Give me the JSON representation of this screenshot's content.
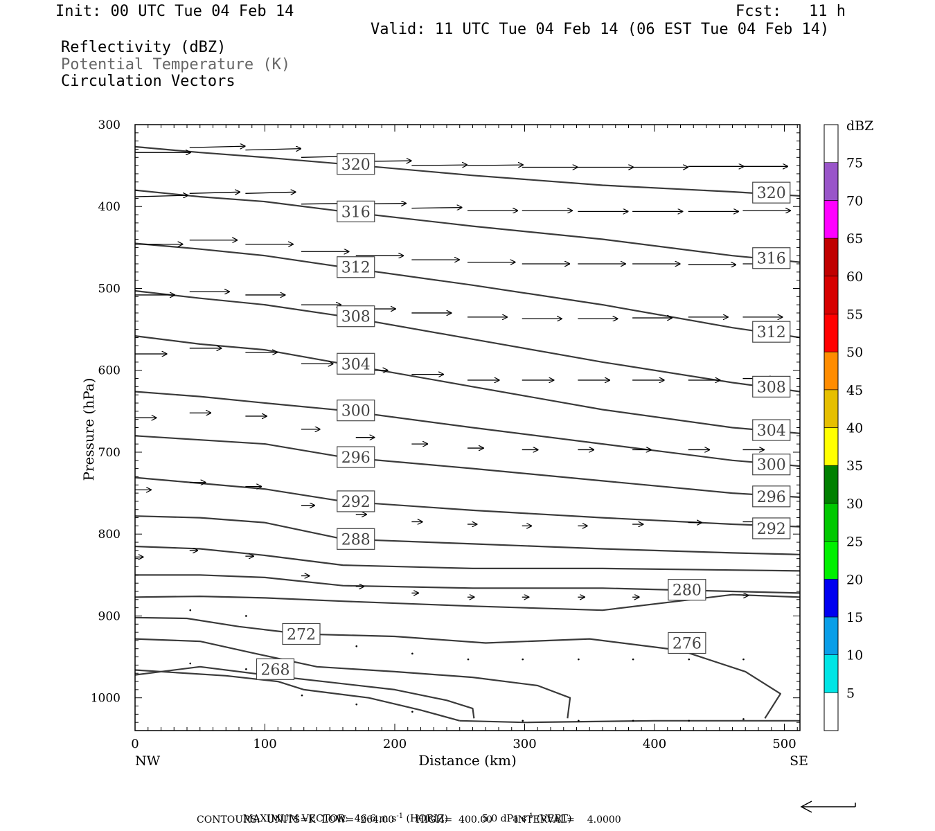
{
  "header": {
    "init": "Init: 00 UTC Tue 04 Feb 14",
    "fcst": "Fcst:   11 h",
    "valid": "Valid: 11 UTC Tue 04 Feb 14 (06 EST Tue 04 Feb 14)",
    "fields": [
      "Reflectivity (dBZ)",
      "Potential Temperature (K)",
      "Circulation Vectors"
    ]
  },
  "footer": {
    "line1_label": "MAXIMUM VECTOR:",
    "line1_horiz": "46.6 m s",
    "line1_horiz_unit": "(HORIZ)",
    "line1_vert": "5.0 dPa s",
    "line1_vert_unit": "(VERT)",
    "line2": "CONTOURS:  UNITS=K  LOW=  264.00       HIGH=  400.00       INTERVAL=    4.0000"
  },
  "colors": {
    "contour": "#3a3a3a",
    "frame": "#000000",
    "colorbar": [
      "#ffffff",
      "#00e5e5",
      "#0a9ee8",
      "#0000f0",
      "#00f000",
      "#00c800",
      "#008000",
      "#ffff00",
      "#e6bf00",
      "#ff8c00",
      "#ff0000",
      "#d60000",
      "#c00000",
      "#ff00ff",
      "#9955c9",
      "#ffffff"
    ]
  },
  "chart_data": {
    "type": "line",
    "title": "",
    "xlabel": "Distance (km)",
    "ylabel": "Pressure (hPa)",
    "xlim": [
      0,
      512
    ],
    "ylim": [
      1040,
      300
    ],
    "x_ticks": [
      0,
      100,
      200,
      300,
      400,
      500
    ],
    "y_ticks": [
      300,
      400,
      500,
      600,
      700,
      800,
      900,
      1000
    ],
    "x_end_labels": [
      "NW",
      "SE"
    ],
    "colorbar": {
      "title": "dBZ",
      "levels": [
        5,
        10,
        15,
        20,
        25,
        30,
        35,
        40,
        45,
        50,
        55,
        60,
        65,
        70,
        75
      ]
    },
    "contour_labels": [
      {
        "label": "320",
        "x": 170,
        "p": 348
      },
      {
        "label": "320",
        "x": 490,
        "p": 383
      },
      {
        "label": "316",
        "x": 170,
        "p": 406
      },
      {
        "label": "316",
        "x": 490,
        "p": 463
      },
      {
        "label": "312",
        "x": 170,
        "p": 474
      },
      {
        "label": "312",
        "x": 490,
        "p": 553
      },
      {
        "label": "308",
        "x": 170,
        "p": 534
      },
      {
        "label": "308",
        "x": 490,
        "p": 620
      },
      {
        "label": "304",
        "x": 170,
        "p": 592
      },
      {
        "label": "304",
        "x": 490,
        "p": 673
      },
      {
        "label": "300",
        "x": 170,
        "p": 649
      },
      {
        "label": "300",
        "x": 490,
        "p": 715
      },
      {
        "label": "296",
        "x": 170,
        "p": 706
      },
      {
        "label": "296",
        "x": 490,
        "p": 754
      },
      {
        "label": "292",
        "x": 170,
        "p": 760
      },
      {
        "label": "292",
        "x": 490,
        "p": 793
      },
      {
        "label": "288",
        "x": 170,
        "p": 806
      },
      {
        "label": "280",
        "x": 425,
        "p": 868
      },
      {
        "label": "276",
        "x": 425,
        "p": 933
      },
      {
        "label": "272",
        "x": 128,
        "p": 922
      },
      {
        "label": "268",
        "x": 108,
        "p": 965
      }
    ],
    "series": [
      {
        "x": [
          0,
          50,
          100,
          160,
          260,
          360,
          460,
          512
        ],
        "y": [
          327,
          334,
          340,
          348,
          362,
          374,
          382,
          387
        ]
      },
      {
        "x": [
          0,
          50,
          100,
          160,
          260,
          360,
          460,
          512
        ],
        "y": [
          380,
          388,
          394,
          406,
          424,
          440,
          460,
          468
        ]
      },
      {
        "x": [
          0,
          50,
          100,
          160,
          260,
          360,
          460,
          512
        ],
        "y": [
          445,
          452,
          460,
          474,
          496,
          520,
          548,
          560
        ]
      },
      {
        "x": [
          0,
          50,
          100,
          160,
          260,
          360,
          460,
          512
        ],
        "y": [
          503,
          512,
          520,
          534,
          562,
          590,
          615,
          626
        ]
      },
      {
        "x": [
          0,
          50,
          100,
          160,
          260,
          360,
          460,
          512
        ],
        "y": [
          558,
          568,
          575,
          592,
          620,
          648,
          670,
          677
        ]
      },
      {
        "x": [
          0,
          50,
          100,
          160,
          260,
          360,
          460,
          512
        ],
        "y": [
          626,
          632,
          640,
          649,
          670,
          690,
          710,
          717
        ]
      },
      {
        "x": [
          0,
          50,
          100,
          160,
          260,
          360,
          460,
          512
        ],
        "y": [
          680,
          685,
          690,
          706,
          720,
          735,
          750,
          755
        ]
      },
      {
        "x": [
          0,
          50,
          100,
          160,
          260,
          360,
          460,
          512
        ],
        "y": [
          731,
          738,
          745,
          760,
          771,
          780,
          788,
          791
        ]
      },
      {
        "x": [
          0,
          50,
          100,
          160,
          260,
          360,
          460,
          512
        ],
        "y": [
          778,
          780,
          786,
          806,
          812,
          818,
          823,
          825
        ]
      },
      {
        "x": [
          0,
          50,
          100,
          160,
          260,
          360,
          460,
          512
        ],
        "y": [
          815,
          818,
          826,
          838,
          842,
          842,
          844,
          845
        ]
      },
      {
        "x": [
          0,
          50,
          100,
          160,
          260,
          360,
          460,
          512
        ],
        "y": [
          850,
          850,
          853,
          863,
          866,
          866,
          870,
          872
        ]
      },
      {
        "x": [
          0,
          50,
          100,
          160,
          260,
          360,
          460,
          512
        ],
        "y": [
          877,
          876,
          878,
          882,
          888,
          893,
          874,
          877
        ]
      },
      {
        "x": [
          0,
          40,
          80,
          128,
          200,
          270,
          350,
          420,
          470,
          497,
          485
        ],
        "y": [
          902,
          903,
          913,
          922,
          925,
          933,
          928,
          942,
          968,
          995,
          1025
        ]
      },
      {
        "x": [
          0,
          50,
          90,
          140,
          200,
          260,
          310,
          335,
          333
        ],
        "y": [
          928,
          931,
          945,
          962,
          968,
          975,
          985,
          1000,
          1025
        ]
      },
      {
        "x": [
          0,
          50,
          100,
          150,
          200,
          240,
          260,
          261
        ],
        "y": [
          972,
          962,
          972,
          981,
          990,
          1003,
          1013,
          1025
        ]
      },
      {
        "x": [
          0,
          70,
          110,
          130,
          180,
          220,
          250
        ],
        "y": [
          966,
          973,
          980,
          990,
          1000,
          1015,
          1028
        ]
      },
      {
        "x": [
          250,
          300,
          400,
          512
        ],
        "y": [
          1028,
          1030,
          1028,
          1028
        ]
      }
    ],
    "vectors": [
      {
        "x": 0,
        "p": 334,
        "u": 42,
        "w": 0
      },
      {
        "x": 42,
        "p": 328,
        "u": 42,
        "w": -2
      },
      {
        "x": 85,
        "p": 331,
        "u": 42,
        "w": -2
      },
      {
        "x": 128,
        "p": 340,
        "u": 42,
        "w": -2
      },
      {
        "x": 170,
        "p": 345,
        "u": 42,
        "w": -1
      },
      {
        "x": 213,
        "p": 350,
        "u": 42,
        "w": -1
      },
      {
        "x": 256,
        "p": 350,
        "u": 42,
        "w": -1
      },
      {
        "x": 298,
        "p": 352,
        "u": 42,
        "w": 0
      },
      {
        "x": 341,
        "p": 352,
        "u": 42,
        "w": 0
      },
      {
        "x": 383,
        "p": 352,
        "u": 42,
        "w": 0
      },
      {
        "x": 426,
        "p": 351,
        "u": 42,
        "w": 0
      },
      {
        "x": 468,
        "p": 351,
        "u": 34,
        "w": 0
      },
      {
        "x": 0,
        "p": 388,
        "u": 40,
        "w": -2
      },
      {
        "x": 42,
        "p": 384,
        "u": 38,
        "w": -2
      },
      {
        "x": 85,
        "p": 384,
        "u": 38,
        "w": -2
      },
      {
        "x": 128,
        "p": 397,
        "u": 38,
        "w": -1
      },
      {
        "x": 170,
        "p": 397,
        "u": 38,
        "w": -1
      },
      {
        "x": 213,
        "p": 402,
        "u": 38,
        "w": -1
      },
      {
        "x": 256,
        "p": 405,
        "u": 38,
        "w": 0
      },
      {
        "x": 298,
        "p": 405,
        "u": 38,
        "w": 0
      },
      {
        "x": 341,
        "p": 406,
        "u": 38,
        "w": 0
      },
      {
        "x": 383,
        "p": 406,
        "u": 38,
        "w": 0
      },
      {
        "x": 426,
        "p": 406,
        "u": 38,
        "w": 0
      },
      {
        "x": 468,
        "p": 405,
        "u": 36,
        "w": 0
      },
      {
        "x": 0,
        "p": 446,
        "u": 36,
        "w": 0
      },
      {
        "x": 42,
        "p": 441,
        "u": 36,
        "w": 0
      },
      {
        "x": 85,
        "p": 446,
        "u": 36,
        "w": 0
      },
      {
        "x": 128,
        "p": 455,
        "u": 36,
        "w": 0
      },
      {
        "x": 170,
        "p": 460,
        "u": 36,
        "w": 0
      },
      {
        "x": 213,
        "p": 465,
        "u": 36,
        "w": 0
      },
      {
        "x": 256,
        "p": 468,
        "u": 36,
        "w": 0
      },
      {
        "x": 298,
        "p": 470,
        "u": 36,
        "w": 0
      },
      {
        "x": 341,
        "p": 470,
        "u": 36,
        "w": 0
      },
      {
        "x": 383,
        "p": 470,
        "u": 36,
        "w": 0
      },
      {
        "x": 426,
        "p": 471,
        "u": 36,
        "w": 0
      },
      {
        "x": 468,
        "p": 470,
        "u": 34,
        "w": 0
      },
      {
        "x": 0,
        "p": 508,
        "u": 30,
        "w": 0
      },
      {
        "x": 42,
        "p": 504,
        "u": 30,
        "w": 0
      },
      {
        "x": 85,
        "p": 508,
        "u": 30,
        "w": 0
      },
      {
        "x": 128,
        "p": 520,
        "u": 30,
        "w": 0
      },
      {
        "x": 170,
        "p": 525,
        "u": 30,
        "w": 0
      },
      {
        "x": 213,
        "p": 530,
        "u": 30,
        "w": 0
      },
      {
        "x": 256,
        "p": 535,
        "u": 30,
        "w": 0
      },
      {
        "x": 298,
        "p": 537,
        "u": 30,
        "w": 0
      },
      {
        "x": 341,
        "p": 537,
        "u": 30,
        "w": 0
      },
      {
        "x": 383,
        "p": 536,
        "u": 30,
        "w": 0
      },
      {
        "x": 426,
        "p": 535,
        "u": 30,
        "w": 0
      },
      {
        "x": 468,
        "p": 535,
        "u": 30,
        "w": 0
      },
      {
        "x": 0,
        "p": 580,
        "u": 24,
        "w": 0
      },
      {
        "x": 42,
        "p": 573,
        "u": 24,
        "w": 0
      },
      {
        "x": 85,
        "p": 578,
        "u": 24,
        "w": 0
      },
      {
        "x": 128,
        "p": 592,
        "u": 24,
        "w": 0
      },
      {
        "x": 170,
        "p": 600,
        "u": 24,
        "w": 0
      },
      {
        "x": 213,
        "p": 605,
        "u": 24,
        "w": 0
      },
      {
        "x": 256,
        "p": 612,
        "u": 24,
        "w": 0
      },
      {
        "x": 298,
        "p": 612,
        "u": 24,
        "w": 0
      },
      {
        "x": 341,
        "p": 612,
        "u": 24,
        "w": 0
      },
      {
        "x": 383,
        "p": 612,
        "u": 24,
        "w": 0
      },
      {
        "x": 426,
        "p": 612,
        "u": 24,
        "w": 0
      },
      {
        "x": 468,
        "p": 610,
        "u": 24,
        "w": 0
      },
      {
        "x": 0,
        "p": 658,
        "u": 16,
        "w": 0
      },
      {
        "x": 42,
        "p": 652,
        "u": 16,
        "w": 0
      },
      {
        "x": 85,
        "p": 656,
        "u": 16,
        "w": 0
      },
      {
        "x": 128,
        "p": 672,
        "u": 14,
        "w": 0
      },
      {
        "x": 170,
        "p": 682,
        "u": 14,
        "w": 0
      },
      {
        "x": 213,
        "p": 690,
        "u": 12,
        "w": 0
      },
      {
        "x": 256,
        "p": 695,
        "u": 12,
        "w": 0
      },
      {
        "x": 298,
        "p": 697,
        "u": 12,
        "w": 0
      },
      {
        "x": 341,
        "p": 697,
        "u": 12,
        "w": 0
      },
      {
        "x": 383,
        "p": 697,
        "u": 14,
        "w": 0
      },
      {
        "x": 426,
        "p": 697,
        "u": 16,
        "w": 0
      },
      {
        "x": 468,
        "p": 697,
        "u": 16,
        "w": 0
      },
      {
        "x": 0,
        "p": 746,
        "u": 12,
        "w": 0
      },
      {
        "x": 42,
        "p": 737,
        "u": 12,
        "w": 0
      },
      {
        "x": 85,
        "p": 742,
        "u": 12,
        "w": 0
      },
      {
        "x": 128,
        "p": 765,
        "u": 10,
        "w": 0
      },
      {
        "x": 170,
        "p": 776,
        "u": 8,
        "w": 0
      },
      {
        "x": 213,
        "p": 785,
        "u": 8,
        "w": 0
      },
      {
        "x": 256,
        "p": 788,
        "u": 7,
        "w": 0
      },
      {
        "x": 298,
        "p": 790,
        "u": 7,
        "w": 0
      },
      {
        "x": 341,
        "p": 790,
        "u": 7,
        "w": 0
      },
      {
        "x": 383,
        "p": 788,
        "u": 8,
        "w": 0
      },
      {
        "x": 426,
        "p": 786,
        "u": 10,
        "w": 0
      },
      {
        "x": 468,
        "p": 785,
        "u": 12,
        "w": 0
      },
      {
        "x": 0,
        "p": 828,
        "u": 6,
        "w": 0
      },
      {
        "x": 42,
        "p": 820,
        "u": 6,
        "w": 0
      },
      {
        "x": 85,
        "p": 827,
        "u": 6,
        "w": 0
      },
      {
        "x": 128,
        "p": 851,
        "u": 6,
        "w": 0
      },
      {
        "x": 170,
        "p": 864,
        "u": 6,
        "w": 0
      },
      {
        "x": 213,
        "p": 872,
        "u": 5,
        "w": 0
      },
      {
        "x": 256,
        "p": 877,
        "u": 5,
        "w": 0
      },
      {
        "x": 298,
        "p": 877,
        "u": 5,
        "w": 0
      },
      {
        "x": 341,
        "p": 877,
        "u": 5,
        "w": 0
      },
      {
        "x": 383,
        "p": 877,
        "u": 5,
        "w": 0
      },
      {
        "x": 426,
        "p": 877,
        "u": 5,
        "w": 0
      },
      {
        "x": 468,
        "p": 875,
        "u": 4,
        "w": 0
      },
      {
        "x": 42,
        "p": 893,
        "u": 2,
        "w": 0
      },
      {
        "x": 85,
        "p": 900,
        "u": 2,
        "w": 0
      },
      {
        "x": 170,
        "p": 937,
        "u": 2,
        "w": 0
      },
      {
        "x": 213,
        "p": 946,
        "u": 2,
        "w": 0
      },
      {
        "x": 256,
        "p": 953,
        "u": 2,
        "w": 0
      },
      {
        "x": 298,
        "p": 953,
        "u": 2,
        "w": 0
      },
      {
        "x": 341,
        "p": 953,
        "u": 2,
        "w": 0
      },
      {
        "x": 383,
        "p": 953,
        "u": 2,
        "w": 0
      },
      {
        "x": 426,
        "p": 953,
        "u": 2,
        "w": 0
      },
      {
        "x": 468,
        "p": 953,
        "u": 2,
        "w": 0
      },
      {
        "x": 42,
        "p": 958,
        "u": 2,
        "w": 0
      },
      {
        "x": 85,
        "p": 965,
        "u": 2,
        "w": 0
      },
      {
        "x": 128,
        "p": 997,
        "u": 2,
        "w": 0
      },
      {
        "x": 170,
        "p": 1008,
        "u": 2,
        "w": 0
      },
      {
        "x": 213,
        "p": 1017,
        "u": 2,
        "w": 0
      },
      {
        "x": 298,
        "p": 1028,
        "u": 2,
        "w": 0
      },
      {
        "x": 341,
        "p": 1028,
        "u": 2,
        "w": 0
      },
      {
        "x": 383,
        "p": 1028,
        "u": 2,
        "w": 0
      },
      {
        "x": 426,
        "p": 1028,
        "u": 2,
        "w": 0
      },
      {
        "x": 468,
        "p": 1026,
        "u": 2,
        "w": 0
      }
    ]
  }
}
